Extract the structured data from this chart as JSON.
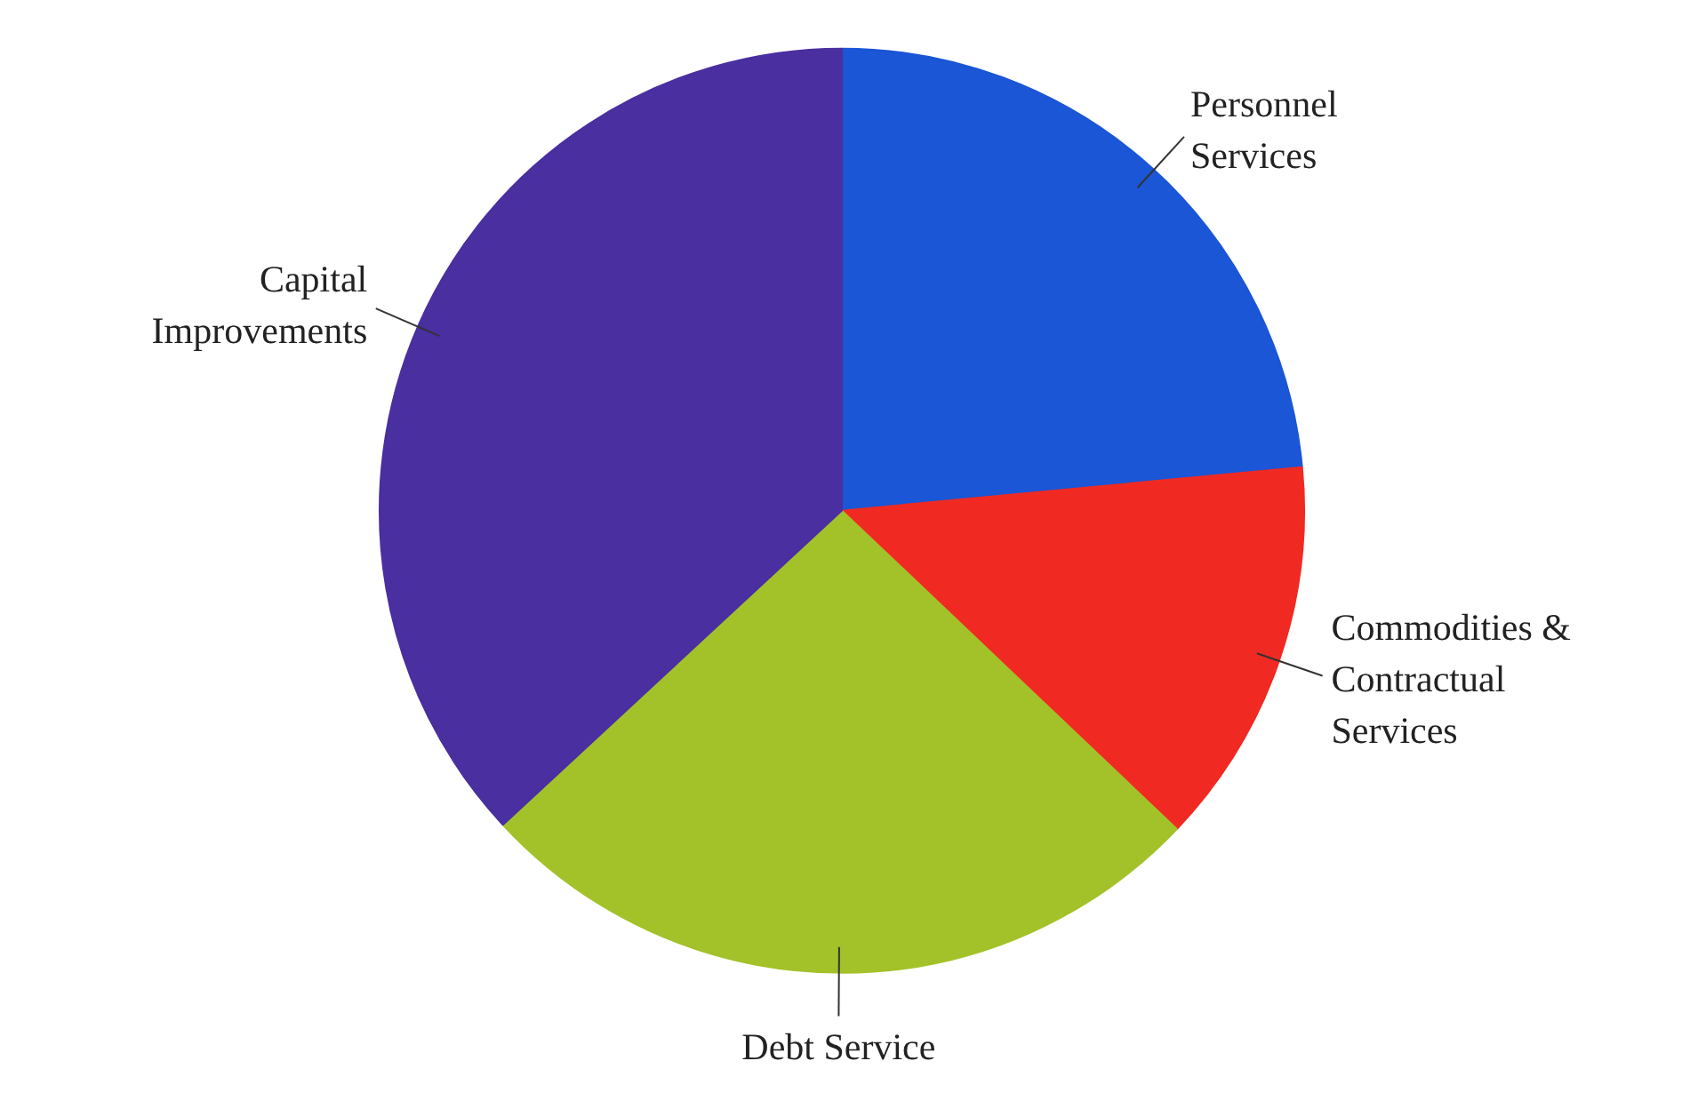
{
  "chart_data": {
    "type": "pie",
    "categories": [
      "Personnel Services",
      "Commodities & Contractual Services",
      "Debt Service",
      "Capital Improvements"
    ],
    "values": [
      23.5,
      13.6,
      26.0,
      36.9
    ],
    "colors": [
      "#1a56d6",
      "#f02a22",
      "#a3c22a",
      "#4a2fa0"
    ]
  }
}
